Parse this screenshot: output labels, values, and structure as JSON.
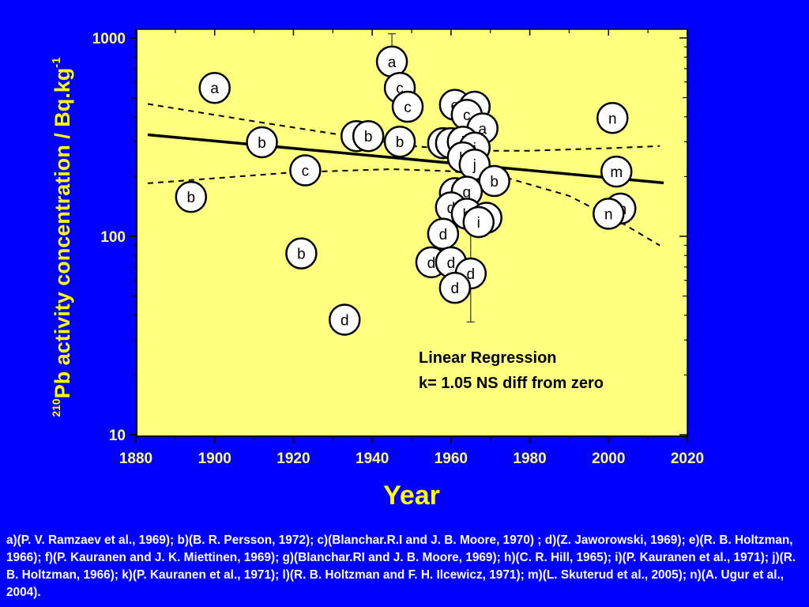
{
  "colors": {
    "background": "#0000ff",
    "plot_background": "#ffff80",
    "axis_text": "#ffff80",
    "ylabel": "#ffff00",
    "marker_fill": "#ffffff",
    "marker_stroke": "#000000",
    "regression_line": "#000000"
  },
  "chart_data": {
    "type": "scatter",
    "title": "",
    "xlabel": "Year",
    "ylabel_superscript": "210",
    "ylabel": "Pb activity concentration / Bq.kg",
    "ylabel_exponent": "-1",
    "xlim": [
      1880,
      2020
    ],
    "ylim": [
      10,
      1000
    ],
    "yscale": "log",
    "grid": false,
    "xticks": [
      "1880",
      "1900",
      "1920",
      "1940",
      "1960",
      "1980",
      "2000",
      "2020"
    ],
    "yticks": [
      {
        "value": 10,
        "label": "10"
      },
      {
        "value": 100,
        "label": "100"
      },
      {
        "value": 1000,
        "label": "1000"
      }
    ],
    "annotation": {
      "line1": "Linear Regression",
      "line2": "k= 1.05 NS diff from zero"
    },
    "regression": {
      "fit": [
        [
          1883,
          325
        ],
        [
          2014,
          186
        ]
      ],
      "lower_band": [
        [
          1883,
          185
        ],
        [
          1920,
          210
        ],
        [
          1945,
          218
        ],
        [
          1960,
          213
        ],
        [
          1975,
          195
        ],
        [
          1990,
          160
        ],
        [
          2003,
          118
        ],
        [
          2013,
          90
        ]
      ],
      "upper_band": [
        [
          1883,
          465
        ],
        [
          1910,
          380
        ],
        [
          1935,
          318
        ],
        [
          1950,
          285
        ],
        [
          1965,
          270
        ],
        [
          1980,
          270
        ],
        [
          2000,
          278
        ],
        [
          2013,
          285
        ]
      ]
    },
    "points": [
      {
        "label": "a",
        "x": 1900,
        "y": 560
      },
      {
        "label": "b",
        "x": 1894,
        "y": 158
      },
      {
        "label": "b",
        "x": 1912,
        "y": 298
      },
      {
        "label": "c",
        "x": 1923,
        "y": 215
      },
      {
        "label": "b",
        "x": 1922,
        "y": 82
      },
      {
        "label": "d",
        "x": 1933,
        "y": 38
      },
      {
        "label": "b",
        "x": 1936,
        "y": 320
      },
      {
        "label": "b",
        "x": 1939,
        "y": 320
      },
      {
        "label": "a",
        "x": 1945,
        "y": 760,
        "err_low": 600,
        "err_high": 1050
      },
      {
        "label": "c",
        "x": 1947,
        "y": 560
      },
      {
        "label": "c",
        "x": 1949,
        "y": 450
      },
      {
        "label": "b",
        "x": 1947,
        "y": 300
      },
      {
        "label": "d",
        "x": 1958,
        "y": 295
      },
      {
        "label": "f",
        "x": 1960,
        "y": 295
      },
      {
        "label": "e",
        "x": 1961,
        "y": 460
      },
      {
        "label": "a",
        "x": 1966,
        "y": 450
      },
      {
        "label": "c",
        "x": 1964,
        "y": 410
      },
      {
        "label": "a",
        "x": 1968,
        "y": 350
      },
      {
        "label": "l",
        "x": 1963,
        "y": 300
      },
      {
        "label": "i",
        "x": 1966,
        "y": 280
      },
      {
        "label": "k",
        "x": 1963,
        "y": 250
      },
      {
        "label": "j",
        "x": 1966,
        "y": 230
      },
      {
        "label": "b",
        "x": 1971,
        "y": 190
      },
      {
        "label": "e",
        "x": 1961,
        "y": 165
      },
      {
        "label": "g",
        "x": 1964,
        "y": 168
      },
      {
        "label": "d",
        "x": 1960,
        "y": 140
      },
      {
        "label": "h",
        "x": 1964,
        "y": 130
      },
      {
        "label": "b",
        "x": 1969,
        "y": 124
      },
      {
        "label": "i",
        "x": 1967,
        "y": 118
      },
      {
        "label": "d",
        "x": 1958,
        "y": 103
      },
      {
        "label": "d",
        "x": 1955,
        "y": 74
      },
      {
        "label": "d",
        "x": 1960,
        "y": 74
      },
      {
        "label": "d",
        "x": 1965,
        "y": 65,
        "err_low": 37,
        "err_high": 115
      },
      {
        "label": "d",
        "x": 1961,
        "y": 55
      },
      {
        "label": "n",
        "x": 2001,
        "y": 395
      },
      {
        "label": "m",
        "x": 2002,
        "y": 212
      },
      {
        "label": "m",
        "x": 2003,
        "y": 138
      },
      {
        "label": "n",
        "x": 2000,
        "y": 130
      }
    ]
  },
  "references": "a)(P. V. Ramzaev et al., 1969);  b)(B. R. Persson, 1972); c)(Blanchar.R.I and J. B. Moore, 1970) ; d)(Z. Jaworowski, 1969); e)(R. B. Holtzman, 1966); f)(P. Kauranen and J. K. Miettinen, 1969); g)(Blanchar.RI and J. B. Moore, 1969); h)(C. R. Hill, 1965); i)(P. Kauranen et al., 1971); j)(R. B. Holtzman, 1966); k)(P. Kauranen et al., 1971); l)(R. B. Holtzman and F. H. Ilcewicz, 1971); m)(L. Skuterud et al., 2005); n)(A. Ugur et al., 2004)."
}
